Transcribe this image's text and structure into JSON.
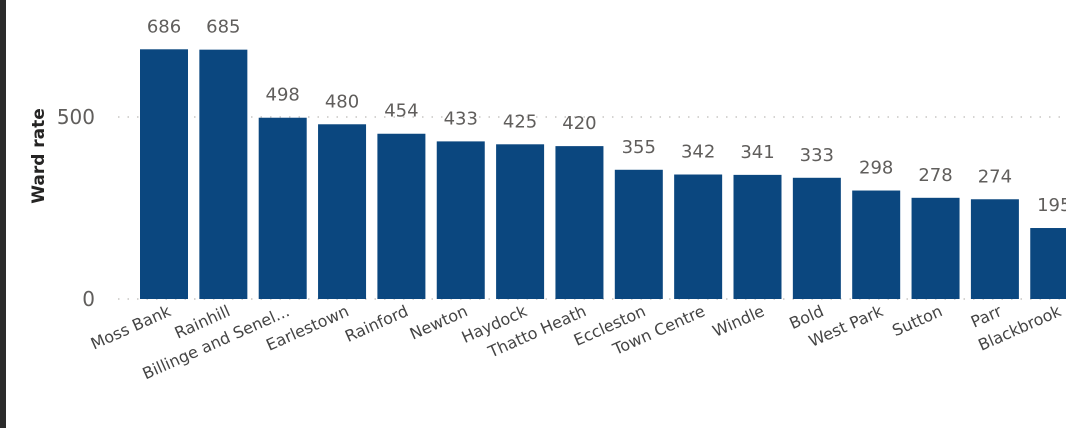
{
  "chart_data": {
    "type": "bar",
    "ylabel": "Ward rate",
    "categories": [
      "Moss Bank",
      "Rainhill",
      "Billinge and Senel...",
      "Earlestown",
      "Rainford",
      "Newton",
      "Haydock",
      "Thatto Heath",
      "Eccleston",
      "Town Centre",
      "Windle",
      "Bold",
      "West Park",
      "Sutton",
      "Parr",
      "Blackbrook"
    ],
    "values": [
      686,
      685,
      498,
      480,
      454,
      433,
      425,
      420,
      355,
      342,
      341,
      333,
      298,
      278,
      274,
      195
    ],
    "value_labels": [
      "686",
      "685",
      "498",
      "480",
      "454",
      "433",
      "425",
      "420",
      "355",
      "342",
      "341",
      "333",
      "298",
      "278",
      "274",
      "195"
    ],
    "yticks": [
      0,
      500
    ],
    "ytick_labels": [
      "0",
      "500"
    ],
    "ylim": [
      0,
      700
    ],
    "grid": "dotted horizontal",
    "bar_color": "#0b477f",
    "grid_color": "#c8c6c4"
  }
}
